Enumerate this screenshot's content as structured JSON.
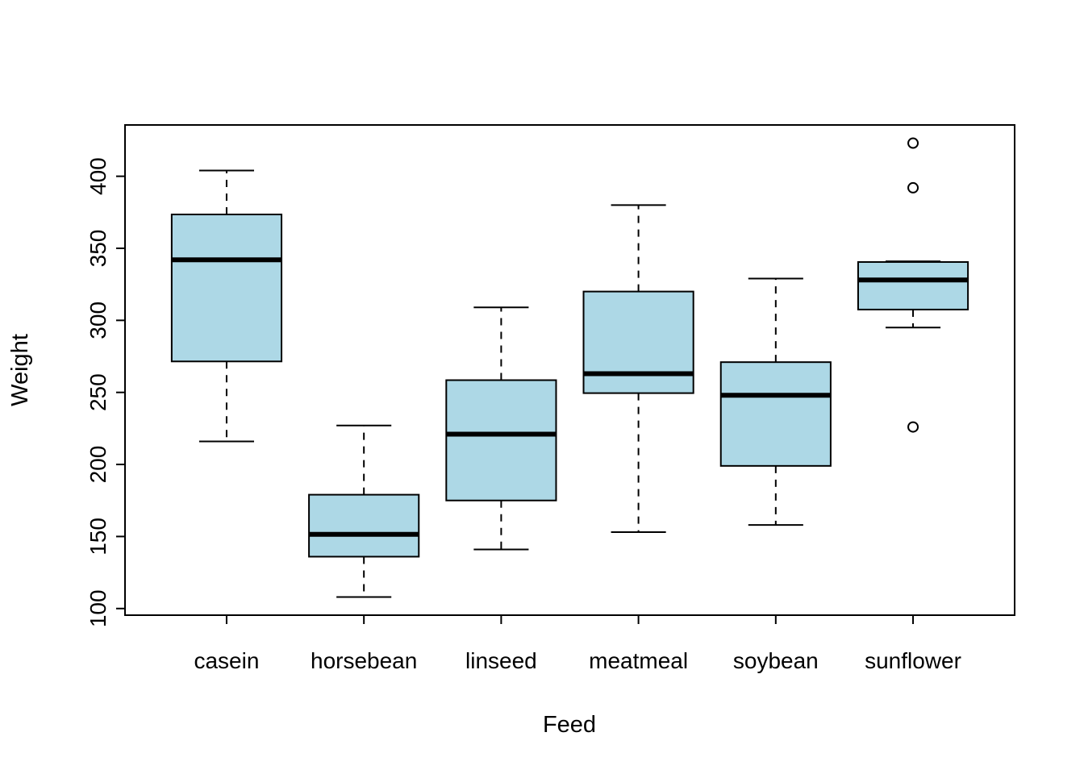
{
  "chart_data": {
    "type": "boxplot",
    "title": "",
    "xlabel": "Feed",
    "ylabel": "Weight",
    "categories": [
      "casein",
      "horsebean",
      "linseed",
      "meatmeal",
      "soybean",
      "sunflower"
    ],
    "yticks": [
      100,
      150,
      200,
      250,
      300,
      350,
      400
    ],
    "ylim": [
      95.4,
      435.6
    ],
    "grid": false,
    "legend": false,
    "box_fill": "#ADD8E6",
    "box_stroke": "#000000",
    "background": "#FFFFFF",
    "series": [
      {
        "name": "casein",
        "whisker_low": 216,
        "q1": 271.5,
        "median": 342,
        "q3": 373.5,
        "whisker_high": 404,
        "outliers": []
      },
      {
        "name": "horsebean",
        "whisker_low": 108,
        "q1": 136,
        "median": 151.5,
        "q3": 179,
        "whisker_high": 227,
        "outliers": []
      },
      {
        "name": "linseed",
        "whisker_low": 141,
        "q1": 175,
        "median": 221,
        "q3": 258.5,
        "whisker_high": 309,
        "outliers": []
      },
      {
        "name": "meatmeal",
        "whisker_low": 153,
        "q1": 249.5,
        "median": 263,
        "q3": 320,
        "whisker_high": 380,
        "outliers": []
      },
      {
        "name": "soybean",
        "whisker_low": 158,
        "q1": 199,
        "median": 248,
        "q3": 271,
        "whisker_high": 329,
        "outliers": []
      },
      {
        "name": "sunflower",
        "whisker_low": 295,
        "q1": 307.5,
        "median": 328,
        "q3": 340.5,
        "whisker_high": 341,
        "outliers": [
          423,
          392,
          226
        ]
      }
    ]
  }
}
